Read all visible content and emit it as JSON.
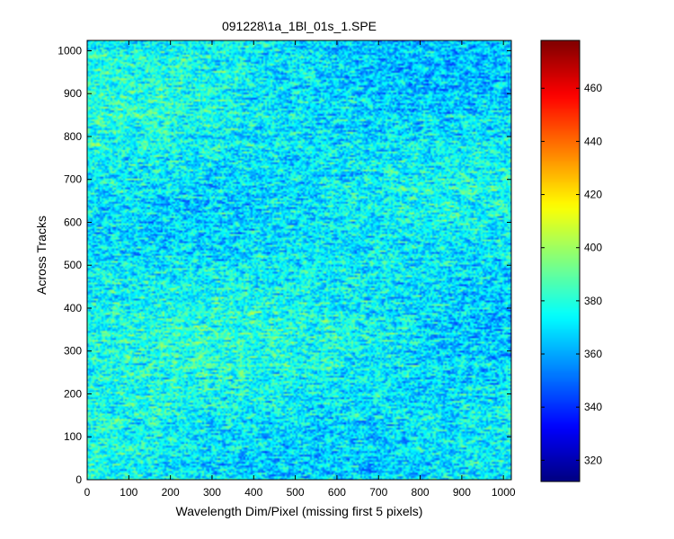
{
  "chart_data": {
    "type": "heatmap",
    "title": "091228\\1a_1Bl_01s_1.SPE",
    "xlabel": "Wavelength Dim/Pixel (missing first 5 pixels)",
    "ylabel": "Across Tracks",
    "xlim": [
      0,
      1019
    ],
    "ylim": [
      0,
      1024
    ],
    "xticks": [
      0,
      100,
      200,
      300,
      400,
      500,
      600,
      700,
      800,
      900,
      1000
    ],
    "yticks": [
      0,
      100,
      200,
      300,
      400,
      500,
      600,
      700,
      800,
      900,
      1000
    ],
    "colorbar": {
      "colormap": "jet",
      "clim": [
        312,
        478
      ],
      "ticks": [
        320,
        340,
        360,
        380,
        400,
        420,
        440,
        460
      ]
    },
    "grid": false,
    "intensity_summary": {
      "typical_value": 370,
      "typical_min": 345,
      "typical_max": 400
    }
  }
}
